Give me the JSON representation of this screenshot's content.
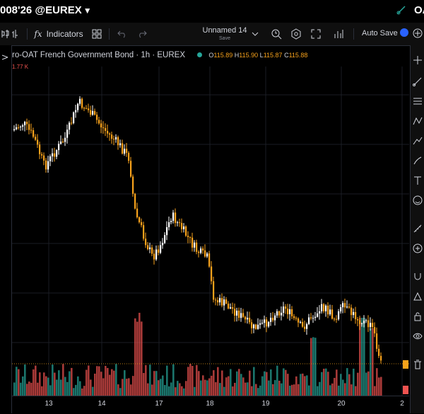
{
  "header": {
    "symbol": "008'26 @EUREX",
    "caret": "▼",
    "right_text": "OA"
  },
  "toolbar": {
    "indicators_label": "Indicators",
    "layout_name": "Unnamed 14",
    "layout_status": "Save",
    "autosave_label": "Auto Save"
  },
  "legend": {
    "title": "ro-OAT French Government Bond · 1h · EUREX",
    "open_label": "O",
    "open": "115.89",
    "high_label": "H",
    "high": "115.90",
    "low_label": "L",
    "low": "115.87",
    "close_label": "C",
    "close": "115.88",
    "volume": "1.77 K"
  },
  "colors": {
    "up_candle": "#ffffff",
    "down_candle": "#f7a21b",
    "volume_up": "#26a69a",
    "volume_down": "#ef5350",
    "accent": "#2962ff"
  },
  "xaxis": {
    "labels": [
      "13",
      "14",
      "17",
      "18",
      "19",
      "20",
      "2"
    ]
  },
  "icons": {
    "left_toolbar": [
      "crosshair-icon",
      "trend-line-icon",
      "fib-icon",
      "pattern-icon",
      "prediction-icon",
      "text-icon",
      "measure-icon",
      "brush-icon",
      "zoom-icon",
      "magnet-icon",
      "lock-icon",
      "eye-icon",
      "trash-icon"
    ]
  }
}
